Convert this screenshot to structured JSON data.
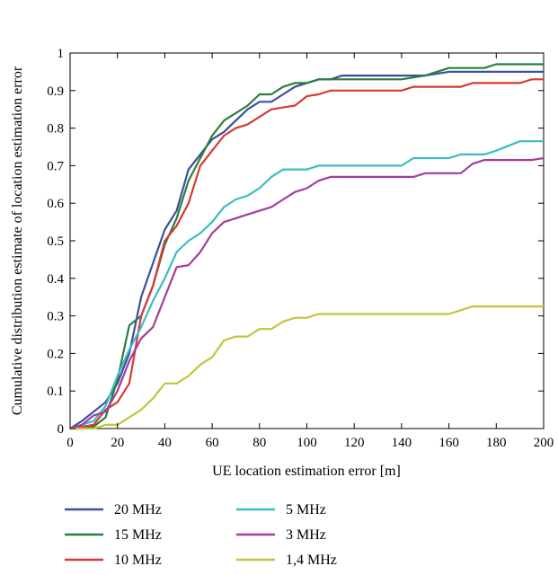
{
  "chart_data": {
    "type": "line",
    "title": "",
    "xlabel": "UE location estimation error [m]",
    "ylabel": "Cumulative distribution estimate of location estimation error",
    "xlim": [
      0,
      200
    ],
    "ylim": [
      0,
      1
    ],
    "x_ticks": [
      "0",
      "20",
      "40",
      "60",
      "80",
      "100",
      "120",
      "140",
      "160",
      "180",
      "200"
    ],
    "y_ticks": [
      "0",
      "0.1",
      "0.2",
      "0.3",
      "0.4",
      "0.5",
      "0.6",
      "0.7",
      "0.8",
      "0.9",
      "1"
    ],
    "grid": false,
    "legend_placement": "below",
    "series": [
      {
        "name": "20 MHz",
        "color": "#3a4fa0",
        "points": [
          [
            0,
            0
          ],
          [
            5,
            0.02
          ],
          [
            10,
            0.045
          ],
          [
            15,
            0.07
          ],
          [
            20,
            0.12
          ],
          [
            25,
            0.2
          ],
          [
            30,
            0.35
          ],
          [
            35,
            0.44
          ],
          [
            40,
            0.53
          ],
          [
            45,
            0.58
          ],
          [
            50,
            0.69
          ],
          [
            55,
            0.73
          ],
          [
            60,
            0.77
          ],
          [
            65,
            0.79
          ],
          [
            70,
            0.82
          ],
          [
            75,
            0.85
          ],
          [
            80,
            0.87
          ],
          [
            85,
            0.87
          ],
          [
            90,
            0.89
          ],
          [
            95,
            0.91
          ],
          [
            100,
            0.92
          ],
          [
            105,
            0.93
          ],
          [
            110,
            0.93
          ],
          [
            115,
            0.94
          ],
          [
            150,
            0.94
          ],
          [
            160,
            0.95
          ],
          [
            200,
            0.95
          ]
        ]
      },
      {
        "name": "15 MHz",
        "color": "#2e7d3c",
        "points": [
          [
            0,
            0
          ],
          [
            5,
            0
          ],
          [
            10,
            0.005
          ],
          [
            15,
            0.03
          ],
          [
            20,
            0.13
          ],
          [
            25,
            0.275
          ],
          [
            30,
            0.3
          ],
          [
            35,
            0.38
          ],
          [
            40,
            0.49
          ],
          [
            45,
            0.56
          ],
          [
            50,
            0.66
          ],
          [
            55,
            0.72
          ],
          [
            60,
            0.78
          ],
          [
            65,
            0.82
          ],
          [
            70,
            0.84
          ],
          [
            75,
            0.86
          ],
          [
            80,
            0.89
          ],
          [
            85,
            0.89
          ],
          [
            90,
            0.91
          ],
          [
            95,
            0.92
          ],
          [
            100,
            0.92
          ],
          [
            105,
            0.93
          ],
          [
            140,
            0.93
          ],
          [
            150,
            0.94
          ],
          [
            160,
            0.96
          ],
          [
            175,
            0.96
          ],
          [
            180,
            0.97
          ],
          [
            200,
            0.97
          ]
        ]
      },
      {
        "name": "10 MHz",
        "color": "#d63a34",
        "points": [
          [
            0,
            0
          ],
          [
            5,
            0.005
          ],
          [
            10,
            0.01
          ],
          [
            15,
            0.05
          ],
          [
            20,
            0.07
          ],
          [
            25,
            0.12
          ],
          [
            30,
            0.3
          ],
          [
            35,
            0.38
          ],
          [
            40,
            0.5
          ],
          [
            45,
            0.54
          ],
          [
            50,
            0.6
          ],
          [
            55,
            0.7
          ],
          [
            60,
            0.74
          ],
          [
            65,
            0.78
          ],
          [
            70,
            0.8
          ],
          [
            75,
            0.81
          ],
          [
            80,
            0.83
          ],
          [
            85,
            0.85
          ],
          [
            90,
            0.855
          ],
          [
            95,
            0.86
          ],
          [
            100,
            0.885
          ],
          [
            105,
            0.89
          ],
          [
            110,
            0.9
          ],
          [
            140,
            0.9
          ],
          [
            145,
            0.91
          ],
          [
            165,
            0.91
          ],
          [
            170,
            0.92
          ],
          [
            190,
            0.92
          ],
          [
            195,
            0.93
          ],
          [
            200,
            0.93
          ]
        ]
      },
      {
        "name": "5 MHz",
        "color": "#3bbcc0",
        "points": [
          [
            0,
            0
          ],
          [
            5,
            0.01
          ],
          [
            10,
            0.02
          ],
          [
            15,
            0.06
          ],
          [
            20,
            0.14
          ],
          [
            25,
            0.21
          ],
          [
            30,
            0.27
          ],
          [
            35,
            0.34
          ],
          [
            40,
            0.4
          ],
          [
            45,
            0.47
          ],
          [
            50,
            0.5
          ],
          [
            55,
            0.52
          ],
          [
            60,
            0.55
          ],
          [
            65,
            0.59
          ],
          [
            70,
            0.61
          ],
          [
            75,
            0.62
          ],
          [
            80,
            0.64
          ],
          [
            85,
            0.67
          ],
          [
            90,
            0.69
          ],
          [
            100,
            0.69
          ],
          [
            105,
            0.7
          ],
          [
            140,
            0.7
          ],
          [
            145,
            0.72
          ],
          [
            160,
            0.72
          ],
          [
            165,
            0.73
          ],
          [
            175,
            0.73
          ],
          [
            180,
            0.74
          ],
          [
            190,
            0.765
          ],
          [
            200,
            0.765
          ]
        ]
      },
      {
        "name": "3 MHz",
        "color": "#a23d9e",
        "points": [
          [
            0,
            0
          ],
          [
            5,
            0.01
          ],
          [
            10,
            0.035
          ],
          [
            15,
            0.045
          ],
          [
            20,
            0.1
          ],
          [
            25,
            0.18
          ],
          [
            30,
            0.24
          ],
          [
            35,
            0.27
          ],
          [
            40,
            0.35
          ],
          [
            45,
            0.43
          ],
          [
            50,
            0.435
          ],
          [
            55,
            0.47
          ],
          [
            60,
            0.52
          ],
          [
            65,
            0.55
          ],
          [
            70,
            0.56
          ],
          [
            75,
            0.57
          ],
          [
            80,
            0.58
          ],
          [
            85,
            0.59
          ],
          [
            90,
            0.61
          ],
          [
            95,
            0.63
          ],
          [
            100,
            0.64
          ],
          [
            105,
            0.66
          ],
          [
            110,
            0.67
          ],
          [
            145,
            0.67
          ],
          [
            150,
            0.68
          ],
          [
            165,
            0.68
          ],
          [
            170,
            0.705
          ],
          [
            175,
            0.715
          ],
          [
            195,
            0.715
          ],
          [
            200,
            0.72
          ]
        ]
      },
      {
        "name": "1,4 MHz",
        "color": "#c4c43a",
        "points": [
          [
            0,
            0
          ],
          [
            10,
            0
          ],
          [
            15,
            0.01
          ],
          [
            20,
            0.01
          ],
          [
            25,
            0.03
          ],
          [
            30,
            0.05
          ],
          [
            35,
            0.08
          ],
          [
            40,
            0.12
          ],
          [
            45,
            0.12
          ],
          [
            50,
            0.14
          ],
          [
            55,
            0.17
          ],
          [
            60,
            0.19
          ],
          [
            65,
            0.235
          ],
          [
            70,
            0.245
          ],
          [
            75,
            0.245
          ],
          [
            80,
            0.265
          ],
          [
            85,
            0.265
          ],
          [
            90,
            0.285
          ],
          [
            95,
            0.295
          ],
          [
            100,
            0.295
          ],
          [
            105,
            0.305
          ],
          [
            160,
            0.305
          ],
          [
            170,
            0.325
          ],
          [
            200,
            0.325
          ]
        ]
      }
    ]
  }
}
